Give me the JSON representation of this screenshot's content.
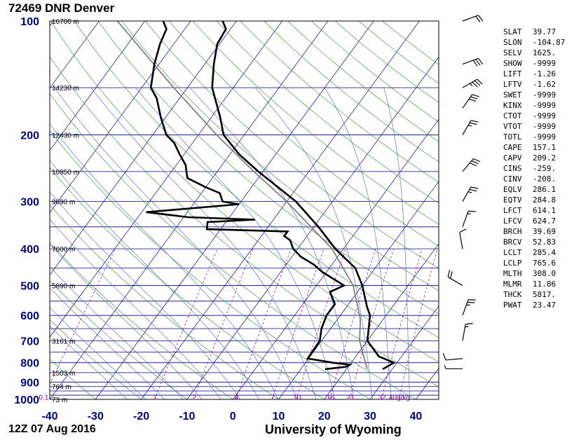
{
  "header": {
    "title": "72469 DNR Denver"
  },
  "footer": {
    "time": "12Z 07 Aug 2016",
    "source": "University of Wyoming"
  },
  "indices": [
    {
      "name": "SLAT",
      "value": "39.77"
    },
    {
      "name": "SLON",
      "value": "-104.87"
    },
    {
      "name": "SELV",
      "value": "1625."
    },
    {
      "name": "SHOW",
      "value": "-9999"
    },
    {
      "name": "LIFT",
      "value": "-1.26"
    },
    {
      "name": "LFTV",
      "value": "-1.62"
    },
    {
      "name": "SWET",
      "value": "-9999"
    },
    {
      "name": "KINX",
      "value": "-9999"
    },
    {
      "name": "CTOT",
      "value": "-9999"
    },
    {
      "name": "VTOT",
      "value": "-9999"
    },
    {
      "name": "TOTL",
      "value": "-9999"
    },
    {
      "name": "CAPE",
      "value": "157.1"
    },
    {
      "name": "CAPV",
      "value": "209.2"
    },
    {
      "name": "CINS",
      "value": "-259."
    },
    {
      "name": "CINV",
      "value": "-208."
    },
    {
      "name": "EQLV",
      "value": "286.1"
    },
    {
      "name": "EQTV",
      "value": "284.8"
    },
    {
      "name": "LFCT",
      "value": "614.1"
    },
    {
      "name": "LFCV",
      "value": "624.7"
    },
    {
      "name": "BRCH",
      "value": "39.69"
    },
    {
      "name": "BRCV",
      "value": "52.83"
    },
    {
      "name": "LCLT",
      "value": "285.4"
    },
    {
      "name": "LCLP",
      "value": "765.6"
    },
    {
      "name": "MLTH",
      "value": "308.0"
    },
    {
      "name": "MLMR",
      "value": "11.86"
    },
    {
      "name": "THCK",
      "value": "5817."
    },
    {
      "name": "PWAT",
      "value": "23.47"
    }
  ],
  "chart_data": {
    "type": "skew-t log-p diagram",
    "title": "72469 DNR Denver",
    "x_axis": {
      "unit": "°C",
      "range": [
        -40,
        45
      ],
      "ticks": [
        "-40",
        "-30",
        "-20",
        "-10",
        "0",
        "10",
        "20",
        "30",
        "40"
      ]
    },
    "y_axis": {
      "scale": "log",
      "range": [
        1000,
        100
      ],
      "labeled_ticks": [
        "1000",
        "900",
        "800",
        "700",
        "600",
        "500",
        "400",
        "300",
        "200",
        "100"
      ]
    },
    "isobars_hPa": [
      1000,
      975,
      950,
      925,
      900,
      850,
      800,
      750,
      700,
      650,
      600,
      550,
      500,
      450,
      400,
      350,
      300,
      250,
      200,
      150,
      100
    ],
    "height_labels": [
      {
        "p": 100,
        "text": "16700 m"
      },
      {
        "p": 150,
        "text": "14230 m"
      },
      {
        "p": 200,
        "text": "12430 m"
      },
      {
        "p": 250,
        "text": "10950 m"
      },
      {
        "p": 300,
        "text": "9690 m"
      },
      {
        "p": 400,
        "text": "7600 m"
      },
      {
        "p": 500,
        "text": "5890 m"
      },
      {
        "p": 700,
        "text": "3161 m"
      },
      {
        "p": 850,
        "text": "1503 m"
      },
      {
        "p": 925,
        "text": "764 m"
      },
      {
        "p": 1000,
        "text": "73 m"
      }
    ],
    "mixing_ratio_labels": [
      "0.1",
      "1",
      "2",
      "4",
      "7",
      "10",
      "16",
      "21",
      "32",
      "40g/kg"
    ],
    "mixing_ratios": [
      0.1,
      1,
      2,
      4,
      7,
      10,
      16,
      21,
      32,
      40
    ],
    "temperature_profile": [
      {
        "p": 832,
        "t": 27.9
      },
      {
        "p": 800,
        "t": 29.3
      },
      {
        "p": 770,
        "t": 25
      },
      {
        "p": 700,
        "t": 20
      },
      {
        "p": 600,
        "t": 16.5
      },
      {
        "p": 570,
        "t": 14.5
      },
      {
        "p": 500,
        "t": 10
      },
      {
        "p": 450,
        "t": 5.7
      },
      {
        "p": 400,
        "t": -1.8
      },
      {
        "p": 350,
        "t": -9
      },
      {
        "p": 300,
        "t": -18
      },
      {
        "p": 250,
        "t": -31
      },
      {
        "p": 225,
        "t": -38
      },
      {
        "p": 200,
        "t": -44.5
      },
      {
        "p": 180,
        "t": -48
      },
      {
        "p": 150,
        "t": -54.6
      },
      {
        "p": 130,
        "t": -58
      },
      {
        "p": 115,
        "t": -60.5
      },
      {
        "p": 105,
        "t": -61
      },
      {
        "p": 100,
        "t": -63
      }
    ],
    "dewpoint_profile": [
      {
        "p": 832,
        "t": 15.3
      },
      {
        "p": 820,
        "t": 19.5
      },
      {
        "p": 810,
        "t": 20
      },
      {
        "p": 800,
        "t": 16
      },
      {
        "p": 780,
        "t": 9.8
      },
      {
        "p": 700,
        "t": 9.6
      },
      {
        "p": 650,
        "t": 8
      },
      {
        "p": 600,
        "t": 7
      },
      {
        "p": 560,
        "t": 7
      },
      {
        "p": 520,
        "t": 4
      },
      {
        "p": 500,
        "t": 6
      },
      {
        "p": 460,
        "t": -1
      },
      {
        "p": 440,
        "t": -4
      },
      {
        "p": 420,
        "t": -8
      },
      {
        "p": 400,
        "t": -11
      },
      {
        "p": 380,
        "t": -13
      },
      {
        "p": 370,
        "t": -15
      },
      {
        "p": 360,
        "t": -15
      },
      {
        "p": 355,
        "t": -33
      },
      {
        "p": 340,
        "t": -34
      },
      {
        "p": 335,
        "t": -24
      },
      {
        "p": 330,
        "t": -39
      },
      {
        "p": 320,
        "t": -49
      },
      {
        "p": 305,
        "t": -30
      },
      {
        "p": 300,
        "t": -34
      },
      {
        "p": 285,
        "t": -36
      },
      {
        "p": 275,
        "t": -40
      },
      {
        "p": 260,
        "t": -45.5
      },
      {
        "p": 240,
        "t": -48
      },
      {
        "p": 225,
        "t": -51
      },
      {
        "p": 210,
        "t": -54
      },
      {
        "p": 200,
        "t": -57
      },
      {
        "p": 180,
        "t": -61
      },
      {
        "p": 160,
        "t": -65
      },
      {
        "p": 150,
        "t": -68
      },
      {
        "p": 130,
        "t": -71
      },
      {
        "p": 115,
        "t": -73
      },
      {
        "p": 105,
        "t": -74
      },
      {
        "p": 100,
        "t": -76
      }
    ],
    "parcel_path": [
      {
        "p": 832,
        "t": 24.5
      },
      {
        "p": 765.6,
        "t": 21.5
      },
      {
        "p": 700,
        "t": 18.3
      },
      {
        "p": 614,
        "t": 15
      },
      {
        "p": 500,
        "t": 8
      },
      {
        "p": 400,
        "t": -2.5
      },
      {
        "p": 300,
        "t": -20
      },
      {
        "p": 250,
        "t": -32
      },
      {
        "p": 200,
        "t": -46
      },
      {
        "p": 150,
        "t": -63
      },
      {
        "p": 100,
        "t": -86
      }
    ],
    "wind_barbs": [
      {
        "p": 830,
        "dir": 270,
        "spd": 5
      },
      {
        "p": 780,
        "dir": 265,
        "spd": 10
      },
      {
        "p": 700,
        "dir": 10,
        "spd": 15
      },
      {
        "p": 600,
        "dir": 20,
        "spd": 25
      },
      {
        "p": 500,
        "dir": 300,
        "spd": 20
      },
      {
        "p": 400,
        "dir": 350,
        "spd": 10
      },
      {
        "p": 350,
        "dir": 20,
        "spd": 15
      },
      {
        "p": 300,
        "dir": 30,
        "spd": 25
      },
      {
        "p": 250,
        "dir": 40,
        "spd": 30
      },
      {
        "p": 200,
        "dir": 30,
        "spd": 25
      },
      {
        "p": 170,
        "dir": 35,
        "spd": 30
      },
      {
        "p": 150,
        "dir": 60,
        "spd": 35
      },
      {
        "p": 130,
        "dir": 70,
        "spd": 30
      },
      {
        "p": 100,
        "dir": 70,
        "spd": 20
      }
    ],
    "colors": {
      "isobar": "#000080",
      "isotherm": "#000080",
      "dry_adiabat": "#2a8a2a",
      "moist_adiabat": "#4060c0",
      "mixing_ratio": "#8000a0",
      "profile": "#000000",
      "parcel": "#808080",
      "axis_label": "#000080"
    }
  }
}
